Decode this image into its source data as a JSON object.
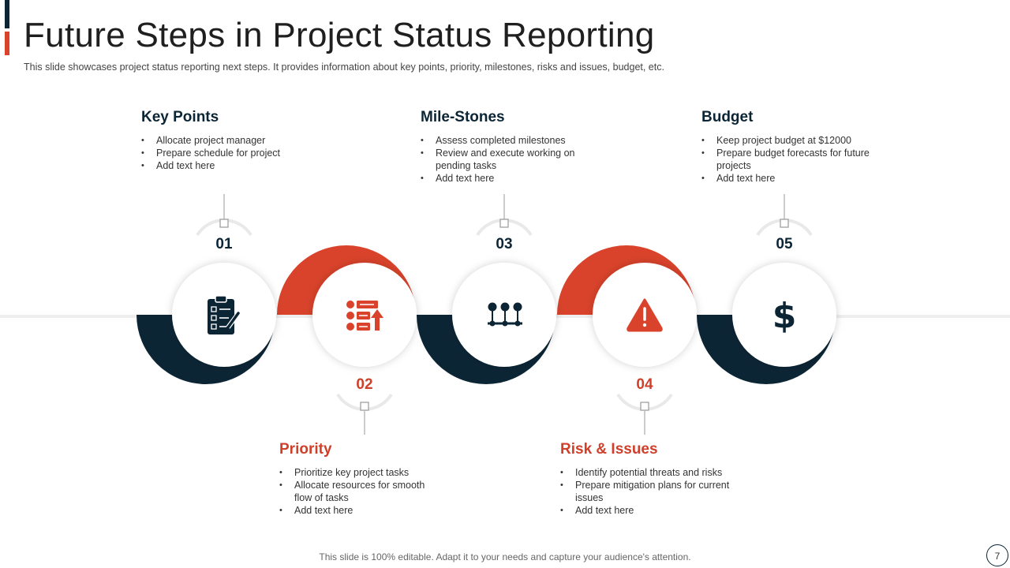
{
  "slide": {
    "title": "Future Steps in Project Status Reporting",
    "subtitle": "This slide showcases project status reporting next steps. It provides  information about key points, priority, milestones, risks and issues, budget, etc.",
    "footer": "This slide is 100% editable. Adapt it to your needs and capture your audience's attention.",
    "page_number": "7"
  },
  "colors": {
    "dark": "#0c2535",
    "red": "#d9432b"
  },
  "steps": [
    {
      "number": "01",
      "title": "Key Points",
      "icon": "clipboard-checklist-icon",
      "bullets": [
        "Allocate project manager",
        "Prepare schedule for project",
        "Add text here"
      ]
    },
    {
      "number": "02",
      "title": "Priority",
      "icon": "priority-list-icon",
      "bullets": [
        "Prioritize key project tasks",
        "Allocate resources for smooth flow of tasks",
        "Add text here"
      ]
    },
    {
      "number": "03",
      "title": "Mile-Stones",
      "icon": "milestones-icon",
      "bullets": [
        "Assess completed milestones",
        "Review  and  execute working on pending tasks",
        "Add text here"
      ]
    },
    {
      "number": "04",
      "title": "Risk & Issues",
      "icon": "warning-icon",
      "bullets": [
        "Identify potential threats and risks",
        "Prepare mitigation plans for current issues",
        "Add text here"
      ]
    },
    {
      "number": "05",
      "title": "Budget",
      "icon": "dollar-icon",
      "bullets": [
        "Keep project budget at $12000",
        "Prepare budget forecasts for future projects",
        "Add text here"
      ]
    }
  ]
}
